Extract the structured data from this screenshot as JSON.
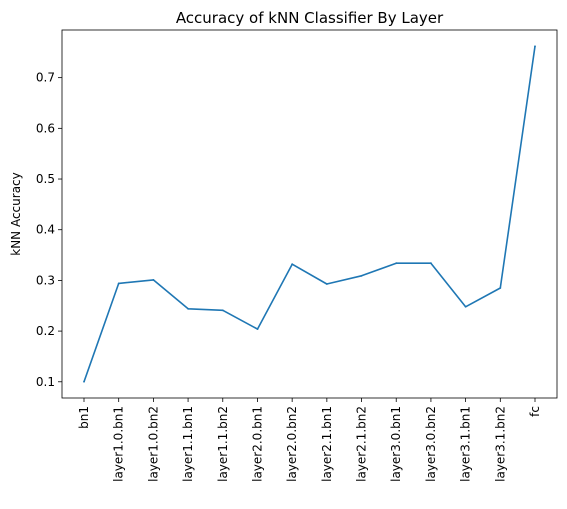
{
  "chart_data": {
    "type": "line",
    "title": "Accuracy of kNN Classifier By Layer",
    "xlabel": "",
    "ylabel": "kNN Accuracy",
    "categories": [
      "bn1",
      "layer1.0.bn1",
      "layer1.0.bn2",
      "layer1.1.bn1",
      "layer1.1.bn2",
      "layer2.0.bn1",
      "layer2.0.bn2",
      "layer2.1.bn1",
      "layer2.1.bn2",
      "layer3.0.bn1",
      "layer3.0.bn2",
      "layer3.1.bn1",
      "layer3.1.bn2",
      "fc"
    ],
    "series": [
      {
        "values": [
          0.1,
          0.294,
          0.301,
          0.244,
          0.241,
          0.204,
          0.332,
          0.293,
          0.309,
          0.334,
          0.334,
          0.248,
          0.285,
          0.762
        ],
        "color": "#1f77b4"
      }
    ],
    "y_ticks": [
      0.1,
      0.2,
      0.3,
      0.4,
      0.5,
      0.6,
      0.7
    ],
    "ylim": [
      0.068,
      0.794
    ],
    "grid": false,
    "legend": "none"
  }
}
